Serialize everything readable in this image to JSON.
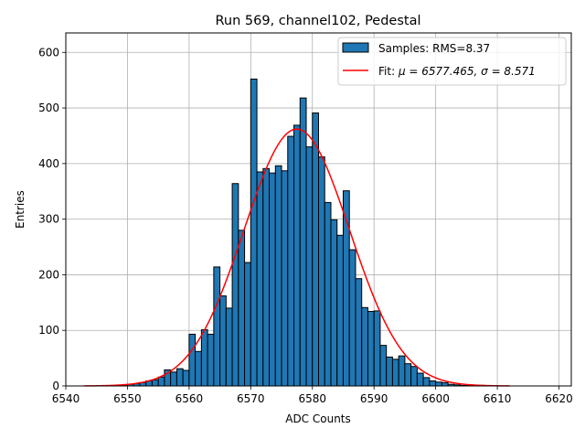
{
  "chart_data": {
    "type": "histogram",
    "title": "Run 569, channel102, Pedestal",
    "xlabel": "ADC Counts",
    "ylabel": "Entries",
    "xlim": [
      6540,
      6622
    ],
    "ylim": [
      0,
      635
    ],
    "xticks": [
      6540,
      6550,
      6560,
      6570,
      6580,
      6590,
      6600,
      6610,
      6620
    ],
    "yticks": [
      0,
      100,
      200,
      300,
      400,
      500,
      600
    ],
    "grid": true,
    "legend_position": "upper right",
    "bin_width": 1,
    "bins": {
      "left_edges": [
        6548,
        6549,
        6550,
        6551,
        6552,
        6553,
        6554,
        6555,
        6556,
        6557,
        6558,
        6559,
        6560,
        6561,
        6562,
        6563,
        6564,
        6565,
        6566,
        6567,
        6568,
        6569,
        6570,
        6571,
        6572,
        6573,
        6574,
        6575,
        6576,
        6577,
        6578,
        6579,
        6580,
        6581,
        6582,
        6583,
        6584,
        6585,
        6586,
        6587,
        6588,
        6589,
        6590,
        6591,
        6592,
        6593,
        6594,
        6595,
        6596,
        6597,
        6598,
        6599,
        6600,
        6601,
        6602,
        6603,
        6604,
        6605,
        6606,
        6607,
        6608,
        6609,
        6610
      ],
      "counts": [
        1,
        2,
        3,
        4,
        6,
        9,
        11,
        16,
        29,
        25,
        31,
        28,
        93,
        62,
        101,
        93,
        214,
        162,
        140,
        364,
        280,
        222,
        552,
        385,
        391,
        383,
        396,
        387,
        449,
        469,
        518,
        430,
        491,
        412,
        330,
        299,
        271,
        351,
        245,
        193,
        141,
        134,
        135,
        73,
        52,
        48,
        54,
        40,
        35,
        23,
        15,
        9,
        7,
        6,
        3,
        2,
        1,
        1,
        0,
        1,
        0,
        0,
        0
      ]
    },
    "series": [
      {
        "name": "histogram",
        "legend": "Samples: RMS=8.37",
        "color": "#1f77b4",
        "edge_color": "#000000"
      },
      {
        "name": "gaussian-fit",
        "legend_prefix": "Fit: ",
        "legend_math": "μ = 6577.465, σ = 8.571",
        "color": "#ff0000",
        "mu": 6577.465,
        "sigma": 8.571,
        "amplitude": 462,
        "x_range": [
          6543,
          6612
        ]
      }
    ]
  }
}
